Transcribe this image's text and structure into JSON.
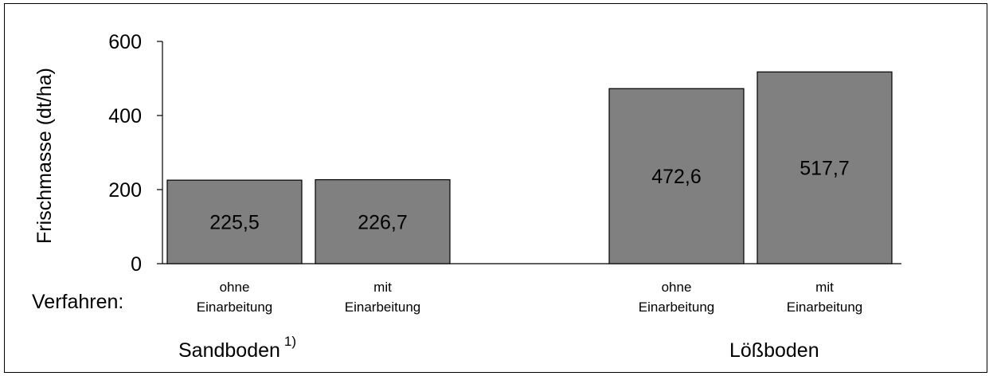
{
  "chart_data": {
    "type": "bar",
    "ylabel": "Frischmasse (dt/ha)",
    "ylim": [
      0,
      600
    ],
    "yticks": [
      "0",
      "200",
      "400",
      "600"
    ],
    "row_label": "Verfahren:",
    "categories": [
      {
        "lines": [
          "ohne",
          "Einarbeitung"
        ],
        "group": 0
      },
      {
        "lines": [
          "mit",
          "Einarbeitung"
        ],
        "group": 0
      },
      {
        "lines": [
          "ohne",
          "Einarbeitung"
        ],
        "group": 1
      },
      {
        "lines": [
          "mit",
          "Einarbeitung"
        ],
        "group": 1
      }
    ],
    "values": [
      225.5,
      226.7,
      472.6,
      517.7
    ],
    "value_labels": [
      "225,5",
      "226,7",
      "472,6",
      "517,7"
    ],
    "groups": [
      {
        "label": "Sandboden",
        "superscript": "1)"
      },
      {
        "label": "Lößboden",
        "superscript": ""
      }
    ],
    "bar_color": "#808080",
    "grid": false
  }
}
